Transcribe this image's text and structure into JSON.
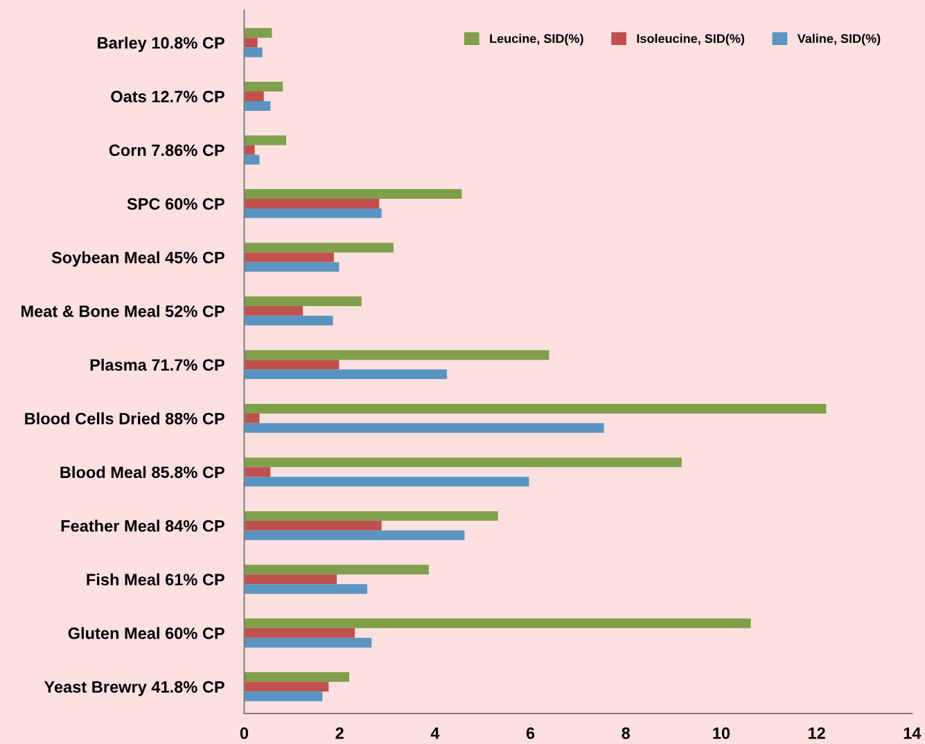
{
  "chart_data": {
    "type": "bar",
    "orientation": "horizontal",
    "categories": [
      "Barley 10.8% CP",
      "Oats 12.7% CP",
      "Corn 7.86% CP",
      "SPC 60% CP",
      "Soybean Meal 45% CP",
      "Meat & Bone Meal 52% CP",
      "Plasma 71.7% CP",
      "Blood Cells Dried 88% CP",
      "Blood Meal 85.8% CP",
      "Feather Meal 84% CP",
      "Fish Meal 61% CP",
      "Gluten Meal 60% CP",
      "Yeast Brewry 41.8% CP"
    ],
    "series": [
      {
        "name": "Leucine, SID(%)",
        "color": "#7f9f4a",
        "values": [
          0.58,
          0.81,
          0.88,
          4.56,
          3.13,
          2.46,
          6.39,
          12.2,
          9.17,
          5.32,
          3.87,
          10.62,
          2.2
        ]
      },
      {
        "name": "Isoleucine, SID(%)",
        "color": "#c0504d",
        "values": [
          0.28,
          0.41,
          0.22,
          2.83,
          1.88,
          1.23,
          1.99,
          0.32,
          0.55,
          2.88,
          1.94,
          2.32,
          1.77
        ]
      },
      {
        "name": "Valine, SID(%)",
        "color": "#5a94c0",
        "values": [
          0.38,
          0.55,
          0.32,
          2.88,
          1.99,
          1.86,
          4.25,
          7.54,
          5.97,
          4.62,
          2.58,
          2.67,
          1.64
        ]
      }
    ],
    "xlim": [
      0,
      14
    ],
    "xticks": [
      0,
      2,
      4,
      6,
      8,
      10,
      12,
      14
    ],
    "grid": false,
    "legend": "top right"
  }
}
